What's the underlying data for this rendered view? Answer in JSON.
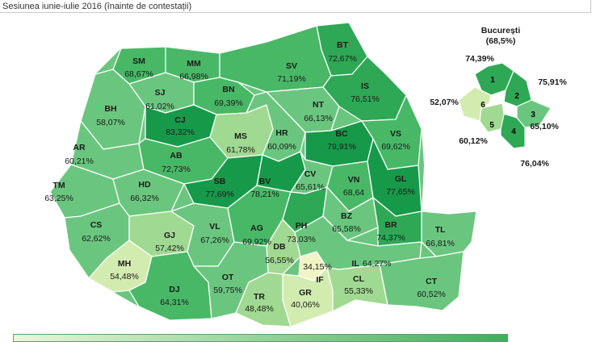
{
  "header": {
    "title": "Sesiunea iunie-iulie 2016 (înainte de contestații)"
  },
  "colors": {
    "c1": "#17994a",
    "c2": "#2ea855",
    "c3": "#48b866",
    "c4": "#6ac67e",
    "c5": "#a0d991",
    "c6": "#d2ecb0",
    "c7": "#f1f5c5",
    "border": "#ffffff"
  },
  "map": {
    "counties": [
      {
        "id": "BT",
        "value": "72,67%"
      },
      {
        "id": "SM",
        "value": "68,67%"
      },
      {
        "id": "MM",
        "value": "66,98%"
      },
      {
        "id": "SV",
        "value": "71,19%"
      },
      {
        "id": "SJ",
        "value": "61,02%"
      },
      {
        "id": "BN",
        "value": "69,39%"
      },
      {
        "id": "IS",
        "value": "76,51%"
      },
      {
        "id": "BH",
        "value": "58,07%"
      },
      {
        "id": "CJ",
        "value": "83,32%"
      },
      {
        "id": "NT",
        "value": "66,13%"
      },
      {
        "id": "MS",
        "value": "61,78%"
      },
      {
        "id": "HR",
        "value": "60,09%"
      },
      {
        "id": "BC",
        "value": "79,91%"
      },
      {
        "id": "VS",
        "value": "69,62%"
      },
      {
        "id": "AR",
        "value": "60,21%"
      },
      {
        "id": "AB",
        "value": "72,73%"
      },
      {
        "id": "TM",
        "value": "63,25%"
      },
      {
        "id": "HD",
        "value": "66,32%"
      },
      {
        "id": "SB",
        "value": "77,69%"
      },
      {
        "id": "BV",
        "value": "78,21%"
      },
      {
        "id": "CV",
        "value": "65,61%"
      },
      {
        "id": "VN",
        "value": "68,64"
      },
      {
        "id": "GL",
        "value": "77,65%"
      },
      {
        "id": "CS",
        "value": "62,62%"
      },
      {
        "id": "GJ",
        "value": "57,42%"
      },
      {
        "id": "VL",
        "value": "67,26%"
      },
      {
        "id": "AG",
        "value": "69,92%"
      },
      {
        "id": "PH",
        "value": "73,03%"
      },
      {
        "id": "BZ",
        "value": "65,58%"
      },
      {
        "id": "BR",
        "value": "74,37%"
      },
      {
        "id": "TL",
        "value": "66,81%"
      },
      {
        "id": "MH",
        "value": "54,48%"
      },
      {
        "id": "DB",
        "value": "56,55%"
      },
      {
        "id": "IF",
        "value": "34,15%"
      },
      {
        "id": "IL",
        "value": "64,27%"
      },
      {
        "id": "DJ",
        "value": "64,31%"
      },
      {
        "id": "OT",
        "value": "59,75%"
      },
      {
        "id": "CL",
        "value": "55,33%"
      },
      {
        "id": "CT",
        "value": "60,52%"
      },
      {
        "id": "TR",
        "value": "48,48%"
      },
      {
        "id": "GR",
        "value": "40,06%"
      }
    ]
  },
  "bucharest": {
    "title": "București",
    "total": "(68,5%)",
    "sectors": [
      {
        "num": "1",
        "value": "74,39%"
      },
      {
        "num": "2",
        "value": "75,91%"
      },
      {
        "num": "3",
        "value": "65,10%"
      },
      {
        "num": "4",
        "value": "76,04%"
      },
      {
        "num": "5",
        "value": "60,12%"
      },
      {
        "num": "6",
        "value": "52,07%"
      }
    ]
  }
}
